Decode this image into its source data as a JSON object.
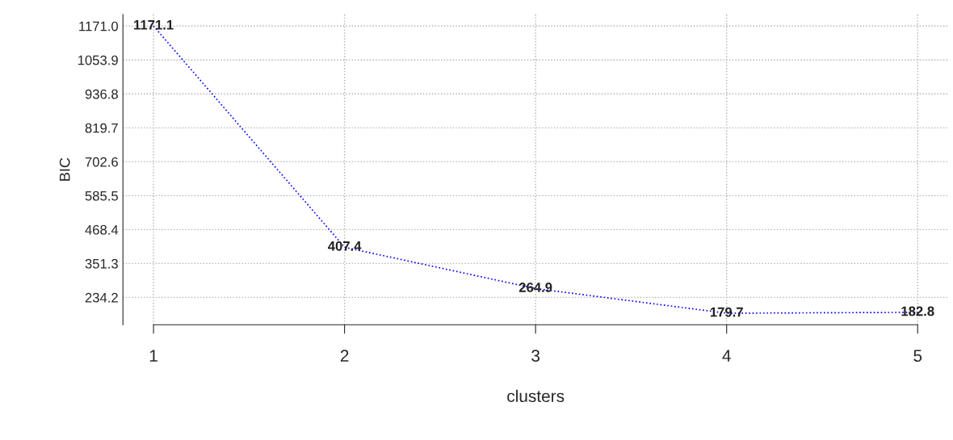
{
  "chart_data": {
    "type": "line",
    "xlabel": "clusters",
    "ylabel": "BIC",
    "x": [
      1,
      2,
      3,
      4,
      5
    ],
    "series": [
      {
        "color": "#0000ff",
        "values": [
          1171.1,
          407.4,
          264.9,
          179.7,
          182.8
        ]
      }
    ],
    "xlim": [
      0.84,
      5.16
    ],
    "xticks": [
      1,
      2,
      3,
      4,
      5
    ],
    "ylim": [
      140,
      1210.8
    ],
    "yticks": [
      {
        "value": 234.2,
        "label": "234.2"
      },
      {
        "value": 351.3,
        "label": "351.3"
      },
      {
        "value": 468.4,
        "label": "468.4"
      },
      {
        "value": 585.5,
        "label": "585.5"
      },
      {
        "value": 702.6,
        "label": "702.6"
      },
      {
        "value": 819.7,
        "label": "819.7"
      },
      {
        "value": 936.8,
        "label": "936.8"
      },
      {
        "value": 1053.9,
        "label": "1053.9"
      },
      {
        "value": 1171.0,
        "label": "1171.0"
      }
    ],
    "grid": true,
    "marker": "none",
    "line_style": "dotted",
    "data_labels": true
  }
}
